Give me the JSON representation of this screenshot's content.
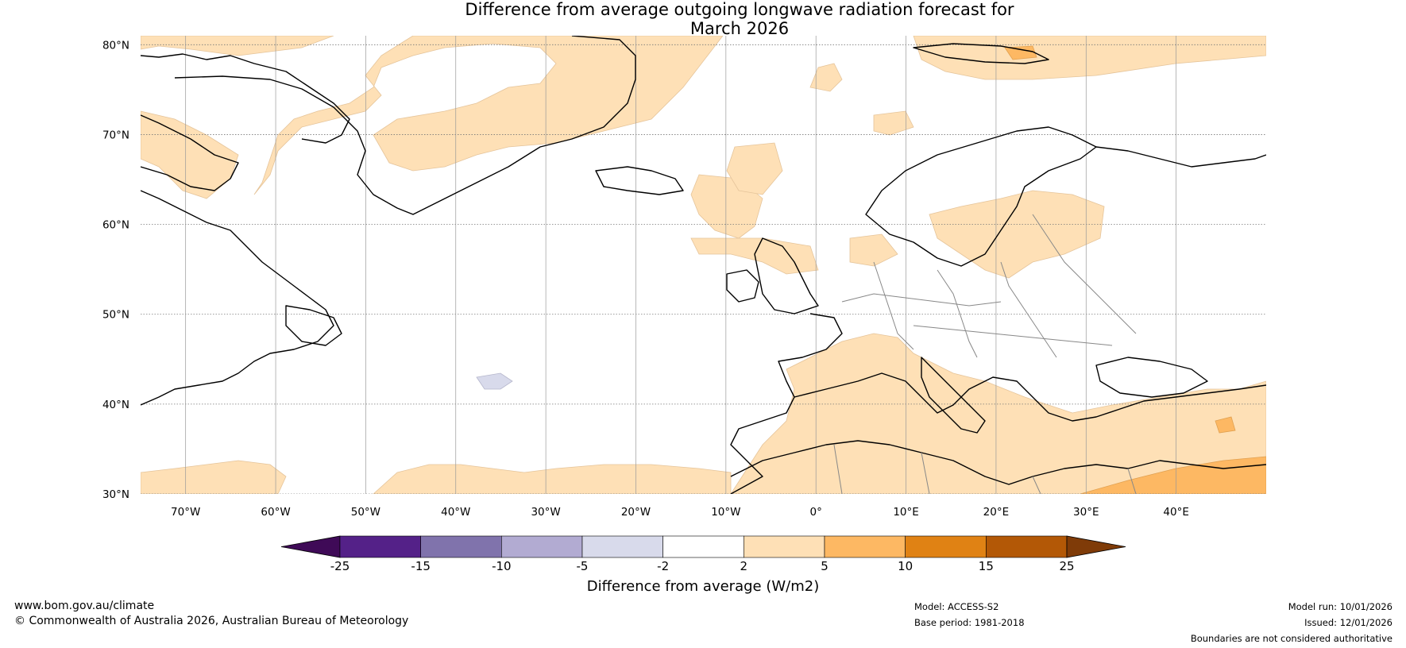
{
  "title": {
    "line1": "Difference from average outgoing longwave radiation forecast for",
    "line2": "March 2026"
  },
  "map": {
    "lat_labels": [
      "80°N",
      "70°N",
      "60°N",
      "50°N",
      "40°N",
      "30°N"
    ],
    "lon_labels": [
      "70°W",
      "60°W",
      "50°W",
      "40°W",
      "30°W",
      "20°W",
      "10°W",
      "0°",
      "10°E",
      "20°E",
      "30°E",
      "40°E"
    ],
    "lat_range": [
      30,
      81
    ],
    "lon_range": [
      -75,
      50
    ]
  },
  "colorbar": {
    "ticks": [
      "-25",
      "-15",
      "-10",
      "-5",
      "-2",
      "2",
      "5",
      "10",
      "15",
      "25"
    ],
    "colors": [
      "#3f0a57",
      "#542188",
      "#8073ac",
      "#b2abd2",
      "#d8daeb",
      "#ffffff",
      "#fee0b6",
      "#fdb863",
      "#e08214",
      "#b35806",
      "#7f3b08"
    ],
    "label": "Difference from average (W/m2)"
  },
  "footer": {
    "website": "www.bom.gov.au/climate",
    "copyright": "© Commonwealth of Australia 2026, Australian Bureau of Meteorology",
    "model": "Model: ACCESS-S2",
    "base_period": "Base period: 1981-2018",
    "model_run": "Model run: 10/01/2026",
    "issued": "Issued: 12/01/2026",
    "disclaimer": "Boundaries are not considered authoritative"
  }
}
